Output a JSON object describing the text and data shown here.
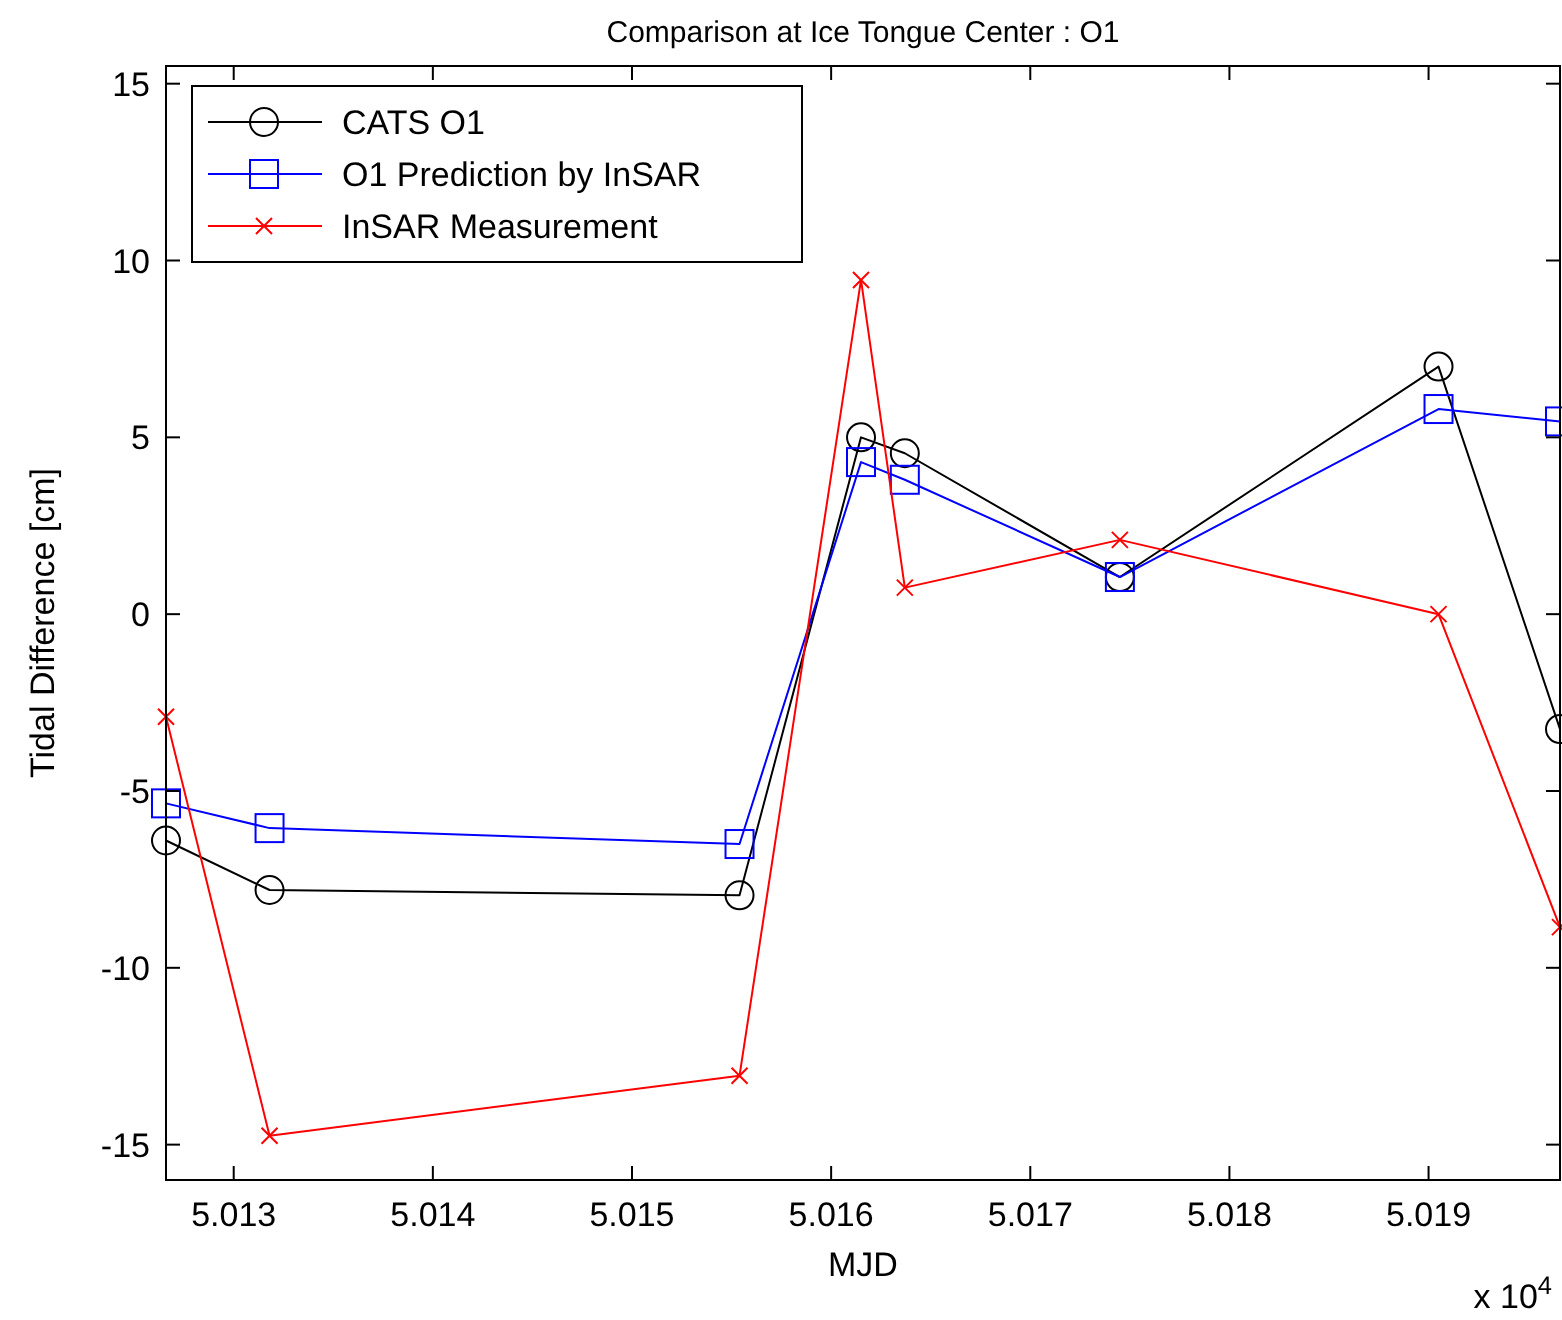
{
  "chart_data": {
    "type": "line",
    "title": "Comparison at Ice Tongue Center : O1",
    "xlabel": "MJD",
    "ylabel": "Tidal Difference [cm]",
    "annotations": [
      "x 10$^{4}$"
    ],
    "x": [
      5.01266,
      5.01318,
      5.01554,
      5.01615,
      5.01637,
      5.01745,
      5.01905,
      5.01966
    ],
    "series": [
      {
        "name": "CATS O1",
        "color": "#000000",
        "marker": "circle",
        "values": [
          -6.4,
          -7.8,
          -7.95,
          5.0,
          4.55,
          1.05,
          7.0,
          -3.25
        ]
      },
      {
        "name": "O1 Prediction by InSAR",
        "color": "#0000ff",
        "marker": "square",
        "values": [
          -5.35,
          -6.05,
          -6.5,
          4.3,
          3.8,
          1.05,
          5.8,
          5.45
        ]
      },
      {
        "name": "InSAR Measurement",
        "color": "#ff0000",
        "marker": "cross",
        "values": [
          -2.9,
          -14.75,
          -13.05,
          9.45,
          0.75,
          2.1,
          0.0,
          -8.85
        ]
      }
    ],
    "xlim": [
      5.01266,
      5.01966
    ],
    "xticks": [
      5.013,
      5.014,
      5.015,
      5.016,
      5.017,
      5.018,
      5.019
    ],
    "ylim": [
      -16,
      15.5
    ],
    "yticks": [
      -15,
      -10,
      -5,
      0,
      5,
      10,
      15
    ],
    "grid": false,
    "legend": "top left",
    "line_style": "solid"
  }
}
